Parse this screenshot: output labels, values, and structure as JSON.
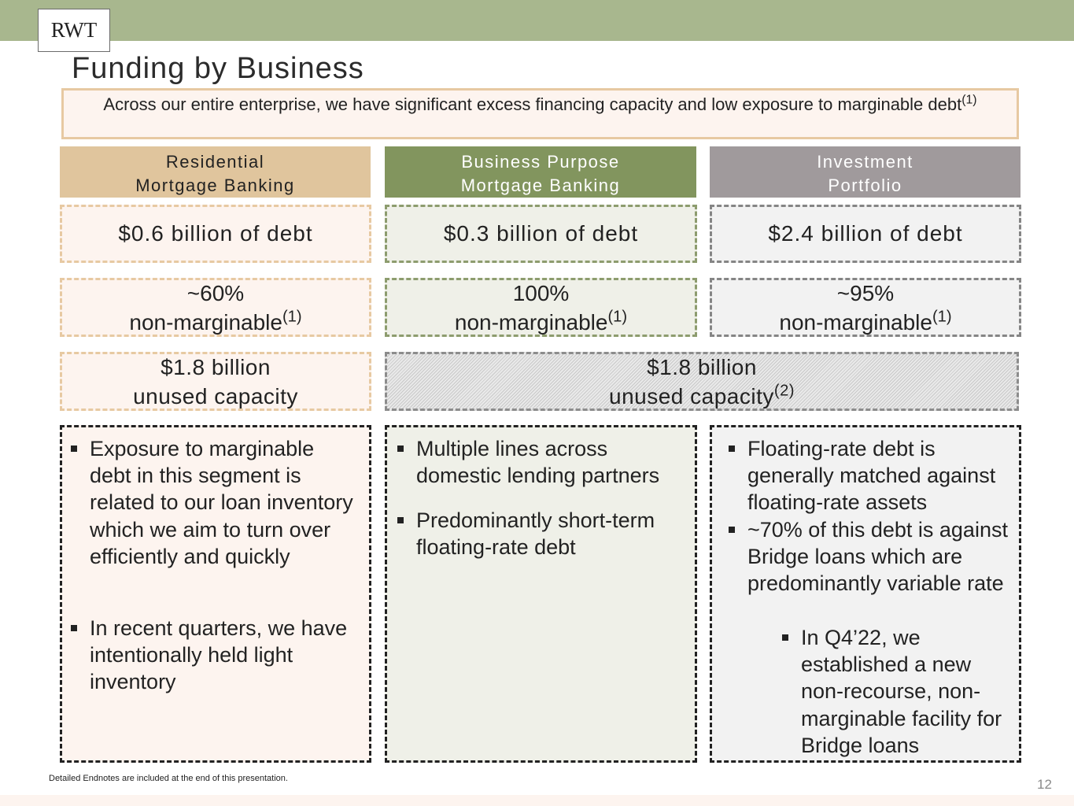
{
  "logo": "RWT",
  "title": "Funding by Business",
  "banner": {
    "text": "Across our entire enterprise, we have significant excess financing capacity and low exposure to marginable debt",
    "note": "(1)"
  },
  "columns": [
    {
      "header": "Residential\nMortgage Banking",
      "debt": "$0.6 billion of debt",
      "pct": "~60%",
      "pct_label": "non-marginable",
      "pct_note": "(1)",
      "capacity_amount": "$1.8 billion",
      "capacity_label": "unused capacity",
      "bullets": [
        "Exposure to marginable debt in this segment is related to our loan inventory which we aim to turn over efficiently and quickly",
        "In recent quarters, we have intentionally held light inventory"
      ]
    },
    {
      "header": "Business Purpose\nMortgage Banking",
      "debt": "$0.3 billion of debt",
      "pct": "100%",
      "pct_label": "non-marginable",
      "pct_note": "(1)",
      "bullets": [
        "Multiple lines across domestic lending partners",
        "Predominantly short-term floating-rate debt"
      ]
    },
    {
      "header": "Investment\nPortfolio",
      "debt": "$2.4 billion of debt",
      "pct": "~95%",
      "pct_label": "non-marginable",
      "pct_note": "(1)",
      "bullets": [
        "Floating-rate debt is generally matched against floating-rate assets",
        "~70% of this debt is against Bridge loans which are predominantly variable rate"
      ],
      "sub_bullet": "In Q4’22, we established a new non-recourse, non-marginable facility for Bridge loans"
    }
  ],
  "shared_capacity": {
    "amount": "$1.8 billion",
    "label": "unused capacity",
    "note": "(2)"
  },
  "footnote": "Detailed Endnotes are included at the end of this presentation.",
  "page_number": "12"
}
